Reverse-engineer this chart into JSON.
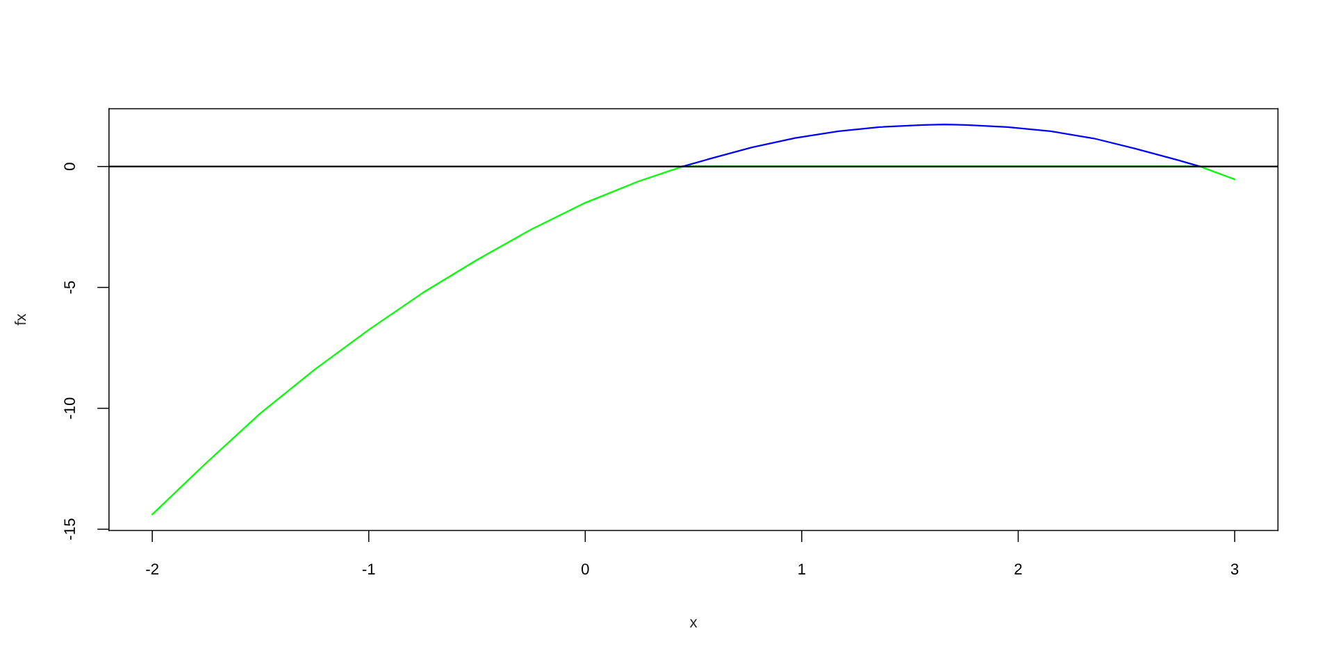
{
  "chart_data": {
    "type": "line",
    "xlabel": "x",
    "ylabel": "fx",
    "xlim": [
      -2.2,
      3.2
    ],
    "ylim": [
      -15.05,
      2.39
    ],
    "xticks": [
      -2,
      -1,
      0,
      1,
      2,
      3
    ],
    "yticks": [
      -15,
      -10,
      -5,
      0
    ],
    "grid": false,
    "marker": "none",
    "line_style": "solid",
    "ref_lines": [
      {
        "axis": "y",
        "value": 0,
        "color": "#000000"
      }
    ],
    "series": [
      {
        "color": "#00ff00",
        "x": [
          -2,
          -1.75,
          -1.5,
          -1.25,
          -1,
          -0.75,
          -0.5,
          -0.25,
          0,
          0.25,
          0.45,
          1,
          1.5,
          2,
          2.5,
          2.84,
          2.9,
          3
        ],
        "values": [
          -14.39,
          -12.25,
          -10.2,
          -8.4,
          -6.75,
          -5.22,
          -3.86,
          -2.6,
          -1.5,
          -0.6,
          0,
          0,
          0,
          0,
          0,
          0,
          -0.2,
          -0.53
        ]
      },
      {
        "color": "#0000ff",
        "x": [
          0.45,
          0.58,
          0.77,
          0.97,
          1.17,
          1.36,
          1.56,
          1.66,
          1.76,
          1.95,
          2.15,
          2.35,
          2.54,
          2.74,
          2.84
        ],
        "values": [
          0,
          0.33,
          0.79,
          1.18,
          1.46,
          1.63,
          1.72,
          1.74,
          1.72,
          1.63,
          1.46,
          1.16,
          0.74,
          0.26,
          0
        ]
      }
    ]
  }
}
